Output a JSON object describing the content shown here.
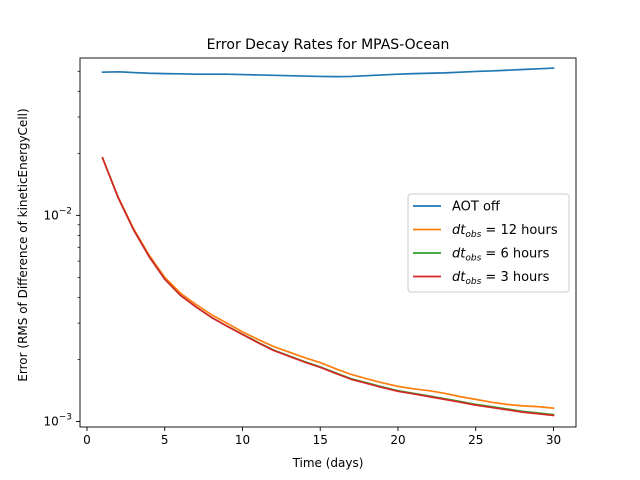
{
  "chart_data": {
    "type": "line",
    "title": "Error Decay Rates for MPAS-Ocean",
    "xlabel": "Time (days)",
    "ylabel": "Error (RMS of Difference of kineticEnergyCell)",
    "yscale": "log",
    "xlim": [
      -0.45,
      31.45
    ],
    "ylim": [
      0.00094,
      0.058
    ],
    "x_ticks": [
      0,
      5,
      10,
      15,
      20,
      25,
      30
    ],
    "y_ticks": [
      {
        "value": 0.01,
        "base": "10",
        "exp": "−2"
      },
      {
        "value": 0.001,
        "base": "10",
        "exp": "−3"
      }
    ],
    "legend_position": "center-right",
    "series": [
      {
        "name": "AOT off",
        "label_parts": {
          "pre": "AOT off"
        },
        "color": "#1f77b4",
        "x": [
          1,
          2,
          3,
          4,
          5,
          6,
          7,
          8,
          9,
          10,
          11,
          12,
          13,
          14,
          15,
          16,
          17,
          18,
          19,
          20,
          21,
          22,
          23,
          24,
          25,
          26,
          27,
          28,
          29,
          30
        ],
        "values": [
          0.0495,
          0.0497,
          0.0493,
          0.0489,
          0.0487,
          0.0486,
          0.0484,
          0.0484,
          0.0484,
          0.0482,
          0.048,
          0.0478,
          0.0476,
          0.0474,
          0.0472,
          0.0471,
          0.0472,
          0.0476,
          0.048,
          0.0484,
          0.0487,
          0.0489,
          0.0491,
          0.0495,
          0.0499,
          0.0502,
          0.0506,
          0.051,
          0.0514,
          0.0518
        ]
      },
      {
        "name": "dt_obs = 12 hours",
        "label_parts": {
          "pre": "dt",
          "sub": "obs",
          "post": " = 12 hours"
        },
        "color": "#ff7f0e",
        "x": [
          1,
          2,
          3,
          4,
          5,
          6,
          7,
          8,
          9,
          10,
          11,
          12,
          13,
          14,
          15,
          16,
          17,
          18,
          19,
          20,
          21,
          22,
          23,
          24,
          25,
          26,
          27,
          28,
          29,
          30
        ],
        "values": [
          0.019,
          0.0123,
          0.0086,
          0.0064,
          0.005,
          0.0042,
          0.0037,
          0.0033,
          0.003,
          0.00272,
          0.0025,
          0.00231,
          0.00217,
          0.00204,
          0.00193,
          0.0018,
          0.00169,
          0.00161,
          0.00154,
          0.00148,
          0.00144,
          0.00141,
          0.00137,
          0.00132,
          0.00128,
          0.00124,
          0.00121,
          0.00119,
          0.00118,
          0.00116
        ]
      },
      {
        "name": "dt_obs = 6 hours",
        "label_parts": {
          "pre": "dt",
          "sub": "obs",
          "post": " = 6 hours"
        },
        "color": "#2ca02c",
        "x": [
          1,
          2,
          3,
          4,
          5,
          6,
          7,
          8,
          9,
          10,
          11,
          12,
          13,
          14,
          15,
          16,
          17,
          18,
          19,
          20,
          21,
          22,
          23,
          24,
          25,
          26,
          27,
          28,
          29,
          30
        ],
        "values": [
          0.019,
          0.0122,
          0.0085,
          0.0063,
          0.0049,
          0.0041,
          0.0036,
          0.0032,
          0.0029,
          0.00265,
          0.00242,
          0.00222,
          0.00208,
          0.00195,
          0.00184,
          0.00172,
          0.00161,
          0.00154,
          0.00147,
          0.00141,
          0.00137,
          0.00133,
          0.00129,
          0.00125,
          0.00121,
          0.00118,
          0.00115,
          0.00112,
          0.0011,
          0.00108
        ]
      },
      {
        "name": "dt_obs = 3 hours",
        "label_parts": {
          "pre": "dt",
          "sub": "obs",
          "post": " = 3 hours"
        },
        "color": "#d62728",
        "x": [
          1,
          2,
          3,
          4,
          5,
          6,
          7,
          8,
          9,
          10,
          11,
          12,
          13,
          14,
          15,
          16,
          17,
          18,
          19,
          20,
          21,
          22,
          23,
          24,
          25,
          26,
          27,
          28,
          29,
          30
        ],
        "values": [
          0.019,
          0.0122,
          0.0085,
          0.0063,
          0.0049,
          0.0041,
          0.0036,
          0.0032,
          0.0029,
          0.00264,
          0.00241,
          0.00221,
          0.00207,
          0.00194,
          0.00183,
          0.00171,
          0.0016,
          0.00153,
          0.00146,
          0.0014,
          0.00136,
          0.00132,
          0.00128,
          0.00124,
          0.0012,
          0.00117,
          0.00114,
          0.00111,
          0.00109,
          0.00107
        ]
      }
    ]
  }
}
